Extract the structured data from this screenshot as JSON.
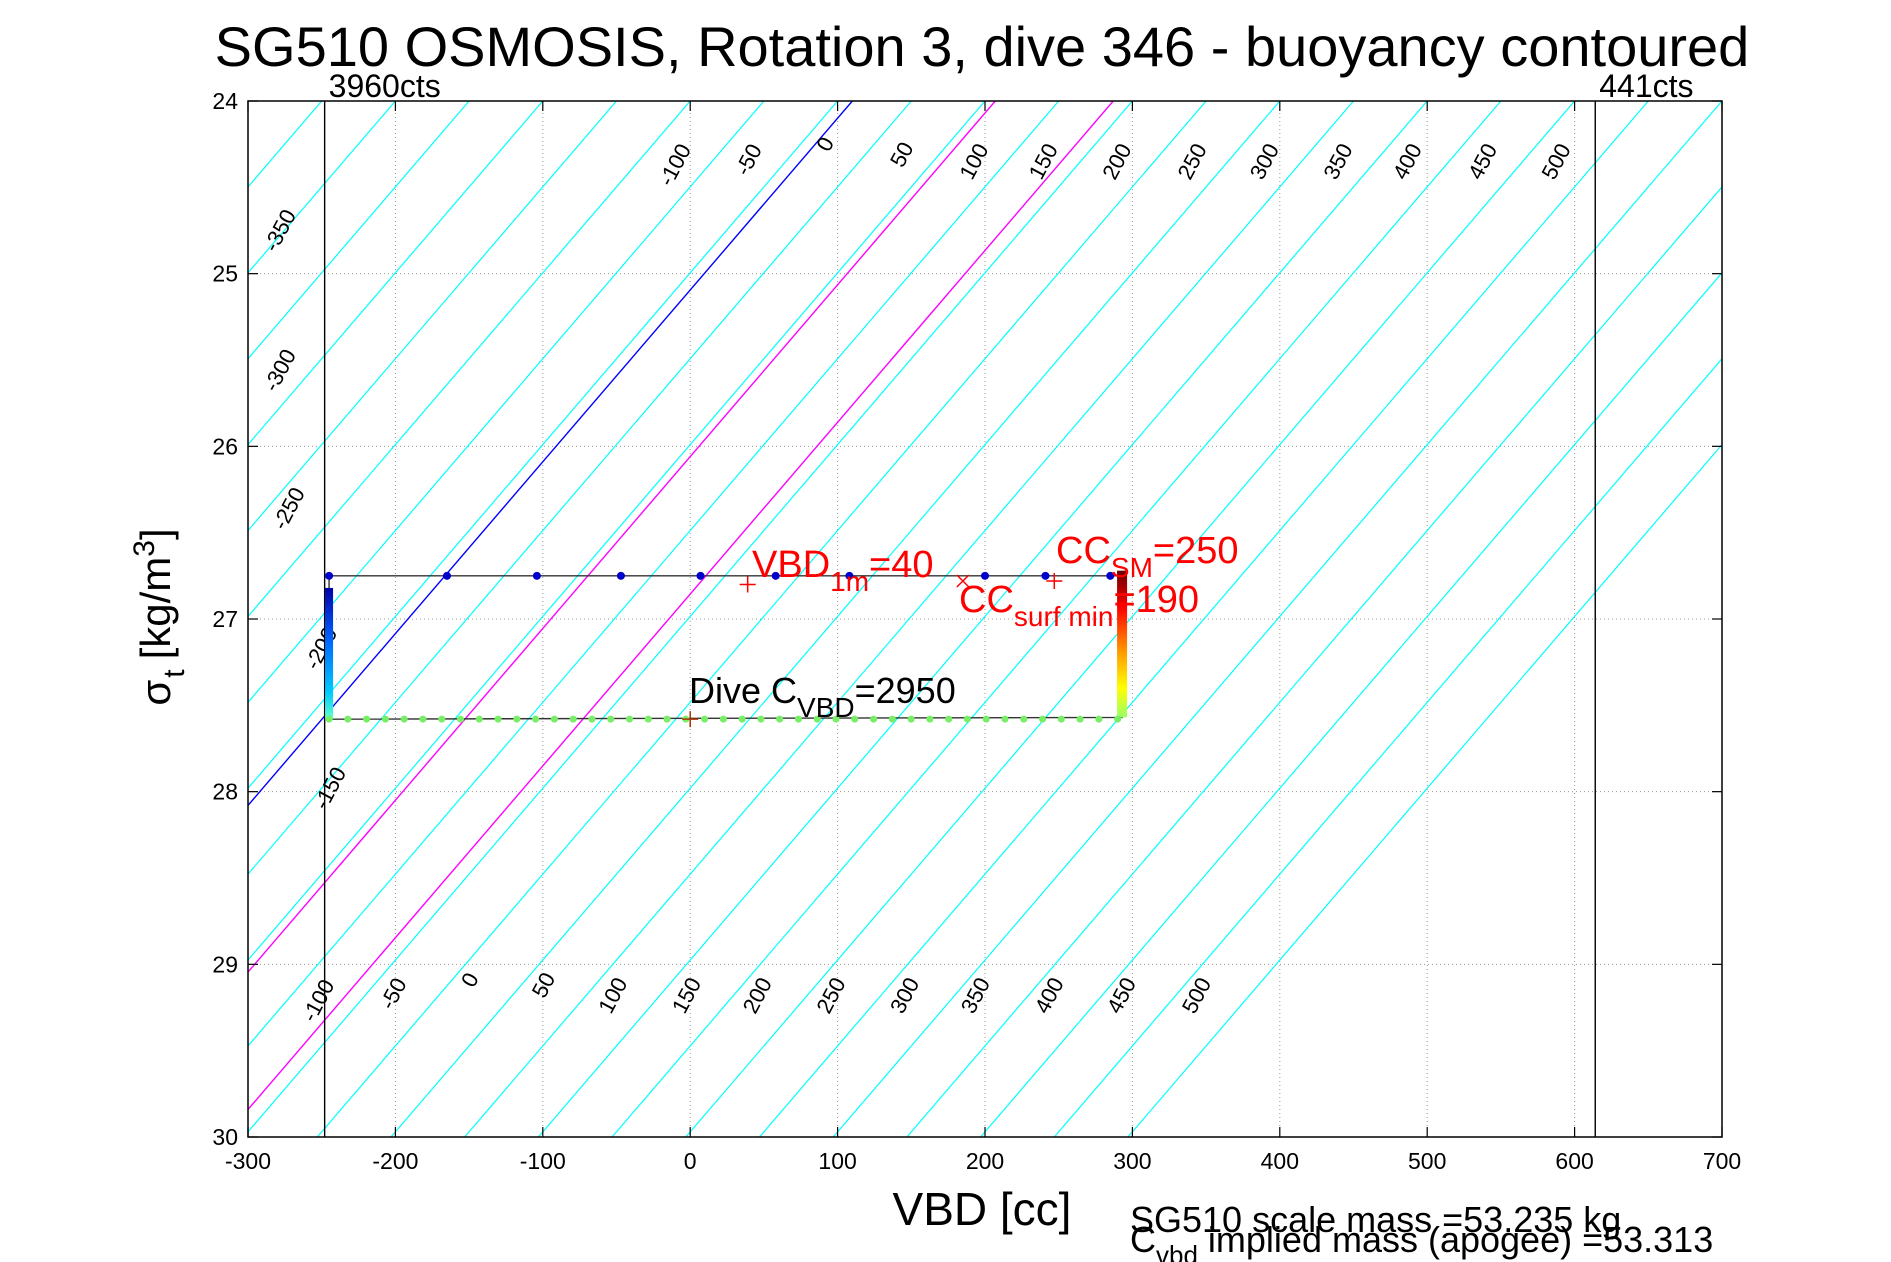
{
  "chart_data": {
    "type": "line",
    "title": "SG510 OSMOSIS, Rotation 3, dive 346 - buoyancy contoured",
    "xlabel": "VBD [cc]",
    "ylabel_main": "σ",
    "ylabel_sub": "t",
    "ylabel_units": "[kg/m",
    "ylabel_units_sup": "3",
    "ylabel_units_close": "]",
    "xlim": [
      -300,
      700
    ],
    "ylim": [
      24,
      30
    ],
    "y_reversed": true,
    "grid": true,
    "xticks": [
      -300,
      -200,
      -100,
      0,
      100,
      200,
      300,
      400,
      500,
      600,
      700
    ],
    "xtick_labels": [
      "-300",
      "-200",
      "-100",
      "0",
      "100",
      "200",
      "300",
      "400",
      "500",
      "600",
      "700"
    ],
    "yticks": [
      24,
      25,
      26,
      27,
      28,
      29,
      30
    ],
    "ytick_labels": [
      "24",
      "25",
      "26",
      "27",
      "28",
      "29",
      "30"
    ],
    "vbd_limits": [
      {
        "x": -248,
        "label": "3960cts"
      },
      {
        "x": 614,
        "label": "441cts"
      }
    ],
    "contour_lines": {
      "x_at_sigma_24": [
        -300,
        -250,
        -200,
        -150,
        -100,
        -50,
        0,
        50,
        100,
        150,
        200,
        250,
        300,
        350,
        400,
        450,
        500,
        550,
        600,
        650,
        700,
        750,
        800,
        850,
        900
      ],
      "x_per_sigma": -100.5,
      "highlight": [
        {
          "x_at_sigma_24": 110,
          "color": "#0000ff"
        },
        {
          "x_at_sigma_24": 207,
          "color": "#ff00ff"
        },
        {
          "x_at_sigma_24": 287,
          "color": "#ff00ff"
        }
      ],
      "color": "#00ffff"
    },
    "contour_labels_top": [
      {
        "text": "-350",
        "x": -274,
        "y": 24.77
      },
      {
        "text": "-100",
        "x": -6,
        "y": 24.39
      },
      {
        "text": "-50",
        "x": 44,
        "y": 24.36
      },
      {
        "text": "0",
        "x": 96,
        "y": 24.27
      },
      {
        "text": "50",
        "x": 148,
        "y": 24.33
      },
      {
        "text": "100",
        "x": 197,
        "y": 24.37
      },
      {
        "text": "150",
        "x": 244,
        "y": 24.37
      },
      {
        "text": "200",
        "x": 294,
        "y": 24.37
      },
      {
        "text": "250",
        "x": 345,
        "y": 24.37
      },
      {
        "text": "300",
        "x": 394,
        "y": 24.37
      },
      {
        "text": "350",
        "x": 444,
        "y": 24.37
      },
      {
        "text": "400",
        "x": 491,
        "y": 24.37
      },
      {
        "text": "450",
        "x": 542,
        "y": 24.37
      },
      {
        "text": "500",
        "x": 592,
        "y": 24.37
      }
    ],
    "contour_labels_left": [
      {
        "text": "-300",
        "x": -274,
        "y": 25.58
      },
      {
        "text": "-250",
        "x": -268,
        "y": 26.38
      },
      {
        "text": "-200",
        "x": -246,
        "y": 27.19
      },
      {
        "text": "-150",
        "x": -240,
        "y": 28.0
      }
    ],
    "contour_labels_bottom": [
      {
        "text": "-100",
        "x": -248,
        "y": 29.23
      },
      {
        "text": "-50",
        "x": -197,
        "y": 29.19
      },
      {
        "text": "0",
        "x": -145,
        "y": 29.11
      },
      {
        "text": "50",
        "x": -95,
        "y": 29.14
      },
      {
        "text": "100",
        "x": -48,
        "y": 29.2
      },
      {
        "text": "150",
        "x": 2,
        "y": 29.2
      },
      {
        "text": "200",
        "x": 50,
        "y": 29.2
      },
      {
        "text": "250",
        "x": 100,
        "y": 29.2
      },
      {
        "text": "300",
        "x": 150,
        "y": 29.2
      },
      {
        "text": "350",
        "x": 198,
        "y": 29.2
      },
      {
        "text": "400",
        "x": 248,
        "y": 29.2
      },
      {
        "text": "450",
        "x": 297,
        "y": 29.2
      },
      {
        "text": "500",
        "x": 348,
        "y": 29.2
      }
    ],
    "series": [
      {
        "name": "dive trace",
        "color": "#333333",
        "points": [
          [
            -245,
            26.75
          ],
          [
            -245,
            27.58
          ],
          [
            293,
            27.57
          ],
          [
            293,
            26.75
          ],
          [
            -245,
            26.75
          ]
        ]
      },
      {
        "name": "surface points",
        "color": "#0000cc",
        "marker": "dot",
        "points": [
          [
            -245,
            26.75
          ],
          [
            -165,
            26.75
          ],
          [
            -104,
            26.75
          ],
          [
            -47,
            26.75
          ],
          [
            7,
            26.75
          ],
          [
            58,
            26.75
          ],
          [
            108,
            26.75
          ],
          [
            200,
            26.75
          ],
          [
            241,
            26.75
          ],
          [
            285,
            26.75
          ]
        ]
      },
      {
        "name": "deep points",
        "color": "#77ee66",
        "marker": "dot",
        "x_start": -245,
        "x_end": 290,
        "count": 43,
        "y": 27.58
      }
    ],
    "markers": [
      {
        "type": "plus",
        "x": 39,
        "y": 26.8,
        "color": "#ff0000"
      },
      {
        "type": "cross",
        "x": 185,
        "y": 26.78,
        "color": "#ff0000"
      },
      {
        "type": "plus",
        "x": 247,
        "y": 26.78,
        "color": "#ff0000"
      },
      {
        "type": "plus",
        "x": 0,
        "y": 27.58,
        "color": "#aa3300"
      }
    ],
    "annotations": {
      "vbd_1m_main": "VBD",
      "vbd_1m_sub": "1m",
      "vbd_1m_value": "=40",
      "cc_sm_main": "CC",
      "cc_sm_sub": "SM",
      "cc_sm_value": "=250",
      "cc_surf_main": "CC",
      "cc_surf_sub": "surf min",
      "cc_surf_value": "=190",
      "dive_cvbd_main": "Dive C",
      "dive_cvbd_sub": "VBD",
      "dive_cvbd_value": "=2950"
    },
    "footer": {
      "scale_mass": "SG510 scale mass =53.235 kg",
      "implied_main": "C",
      "implied_sub": "vbd",
      "implied_text": " implied mass (apogee) =53.313"
    }
  }
}
